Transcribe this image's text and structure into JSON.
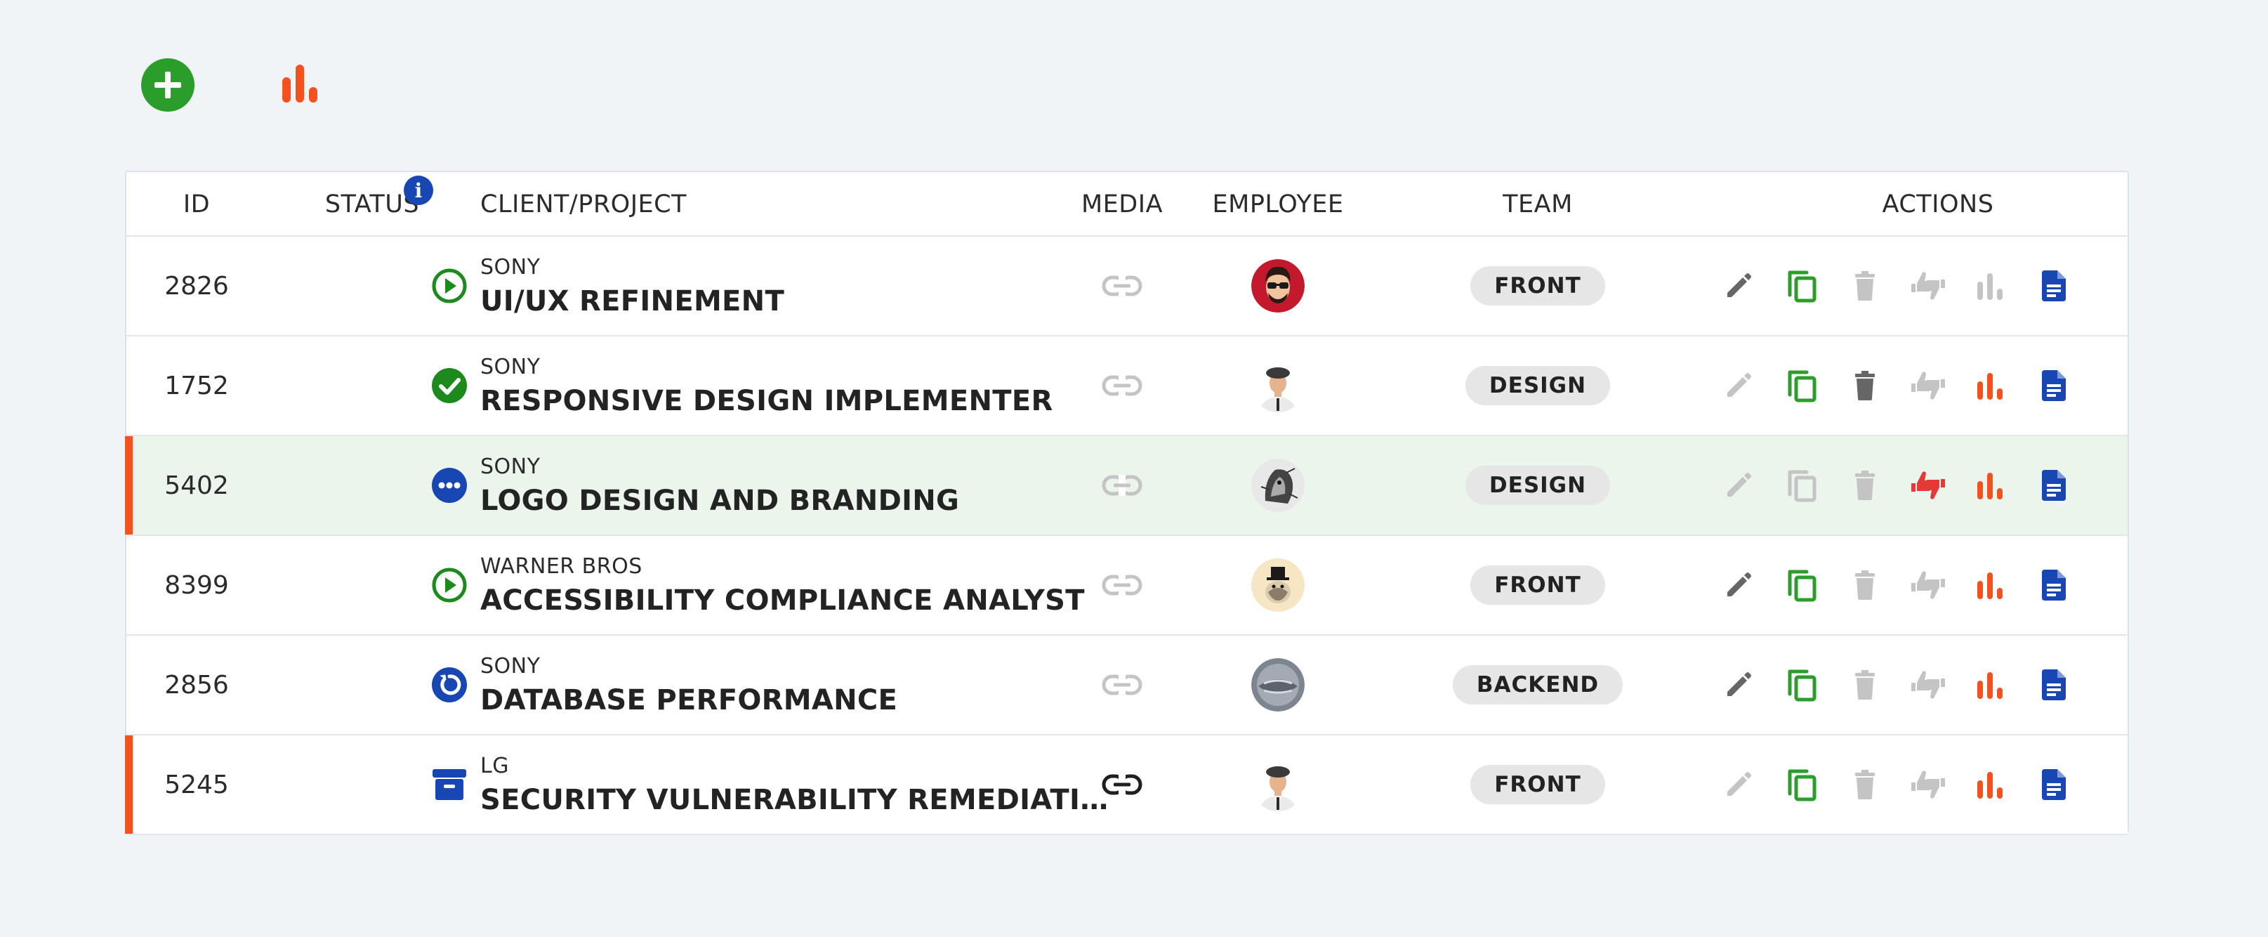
{
  "toolbar": {
    "add_icon": "plus-circle-icon",
    "stats_icon": "bar-chart-icon"
  },
  "table": {
    "headers": {
      "id": "ID",
      "status": "STATUS",
      "project": "CLIENT/PROJECT",
      "media": "MEDIA",
      "employee": "EMPLOYEE",
      "team": "TEAM",
      "actions": "ACTIONS"
    },
    "status_info_icon": "info-icon",
    "rows": [
      {
        "id": "2826",
        "status": "play",
        "client": "SONY",
        "project": "UI/UX REFINEMENT",
        "team": "FRONT",
        "media_active": false,
        "flag": false,
        "highlight": false,
        "avatar": "red-sunglasses",
        "actions": {
          "edit": "dark",
          "copy": "green",
          "delete": "light",
          "vote": "light",
          "stats": "light",
          "doc": "blue"
        }
      },
      {
        "id": "1752",
        "status": "done",
        "client": "SONY",
        "project": "RESPONSIVE DESIGN IMPLEMENTER",
        "team": "DESIGN",
        "media_active": false,
        "flag": false,
        "highlight": false,
        "avatar": "beret",
        "actions": {
          "edit": "light",
          "copy": "green",
          "delete": "dark",
          "vote": "light",
          "stats": "orange",
          "doc": "blue"
        }
      },
      {
        "id": "5402",
        "status": "more",
        "client": "SONY",
        "project": "LOGO DESIGN AND BRANDING",
        "team": "DESIGN",
        "media_active": false,
        "flag": true,
        "highlight": true,
        "avatar": "sketch",
        "actions": {
          "edit": "light",
          "copy": "light",
          "delete": "light",
          "vote": "red",
          "stats": "orange",
          "doc": "blue"
        }
      },
      {
        "id": "8399",
        "status": "play",
        "client": "WARNER BROS",
        "project": "ACCESSIBILITY COMPLIANCE ANALYST",
        "team": "FRONT",
        "media_active": false,
        "flag": false,
        "highlight": false,
        "avatar": "tophat",
        "actions": {
          "edit": "dark",
          "copy": "green",
          "delete": "light",
          "vote": "light",
          "stats": "orange",
          "doc": "blue"
        }
      },
      {
        "id": "2856",
        "status": "restart",
        "client": "SONY",
        "project": "DATABASE PERFORMANCE",
        "team": "BACKEND",
        "media_active": false,
        "flag": false,
        "highlight": false,
        "avatar": "grey",
        "actions": {
          "edit": "dark",
          "copy": "green",
          "delete": "light",
          "vote": "light",
          "stats": "orange",
          "doc": "blue"
        }
      },
      {
        "id": "5245",
        "status": "archive",
        "client": "LG",
        "project": "SECURITY VULNERABILITY REMEDIATI…",
        "team": "FRONT",
        "media_active": true,
        "flag": true,
        "highlight": false,
        "avatar": "beret",
        "actions": {
          "edit": "light",
          "copy": "green",
          "delete": "light",
          "vote": "light",
          "stats": "orange",
          "doc": "blue"
        }
      }
    ]
  },
  "colors": {
    "green": "#2a9d2a",
    "dark_green": "#1c8a1c",
    "blue": "#1846b3",
    "orange": "#f5511e",
    "red": "#e53935",
    "dark": "#666666",
    "light": "#c4c4c4",
    "highlight": "#ebf5ec"
  }
}
